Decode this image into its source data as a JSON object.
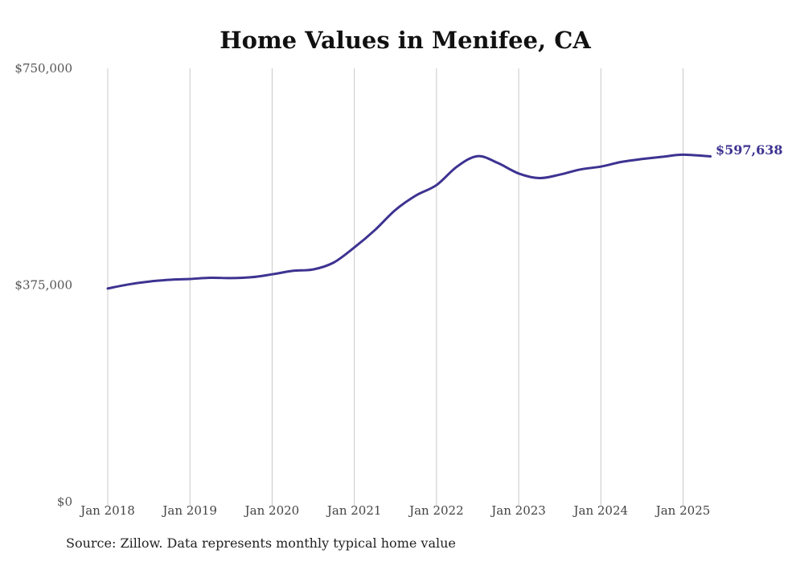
{
  "source_note": "Source: Zillow. Data represents monthly typical home value",
  "colors": {
    "line": "#3d3391",
    "grid": "#c8c8c8"
  },
  "chart_data": {
    "type": "line",
    "title": "Home Values in Menifee, CA",
    "xlabel": "",
    "ylabel": "",
    "ylim": [
      0,
      750000
    ],
    "xlim": [
      2018.0,
      2025.333
    ],
    "y_ticks": [
      0,
      375000,
      750000
    ],
    "y_tick_labels": [
      "$0",
      "$375,000",
      "$750,000"
    ],
    "x_ticks": [
      2018,
      2019,
      2020,
      2021,
      2022,
      2023,
      2024,
      2025
    ],
    "x_tick_labels": [
      "Jan 2018",
      "Jan 2019",
      "Jan 2020",
      "Jan 2021",
      "Jan 2022",
      "Jan 2023",
      "Jan 2024",
      "Jan 2025"
    ],
    "grid": "vertical at each x tick",
    "end_label": "$597,638",
    "series": [
      {
        "values": [
          [
            2018.0,
            369000
          ],
          [
            2018.25,
            376000
          ],
          [
            2018.5,
            381000
          ],
          [
            2018.75,
            384000
          ],
          [
            2019.0,
            385500
          ],
          [
            2019.25,
            387500
          ],
          [
            2019.5,
            387000
          ],
          [
            2019.75,
            388500
          ],
          [
            2020.0,
            393500
          ],
          [
            2020.25,
            399500
          ],
          [
            2020.5,
            402000
          ],
          [
            2020.75,
            414000
          ],
          [
            2021.0,
            440000
          ],
          [
            2021.25,
            470000
          ],
          [
            2021.5,
            505000
          ],
          [
            2021.75,
            530000
          ],
          [
            2022.0,
            548000
          ],
          [
            2022.25,
            580000
          ],
          [
            2022.5,
            598000
          ],
          [
            2022.75,
            586000
          ],
          [
            2023.0,
            568000
          ],
          [
            2023.25,
            560000
          ],
          [
            2023.5,
            566000
          ],
          [
            2023.75,
            575000
          ],
          [
            2024.0,
            580000
          ],
          [
            2024.25,
            588000
          ],
          [
            2024.5,
            593000
          ],
          [
            2024.75,
            597000
          ],
          [
            2025.0,
            600500
          ],
          [
            2025.333,
            597638
          ]
        ]
      }
    ]
  }
}
